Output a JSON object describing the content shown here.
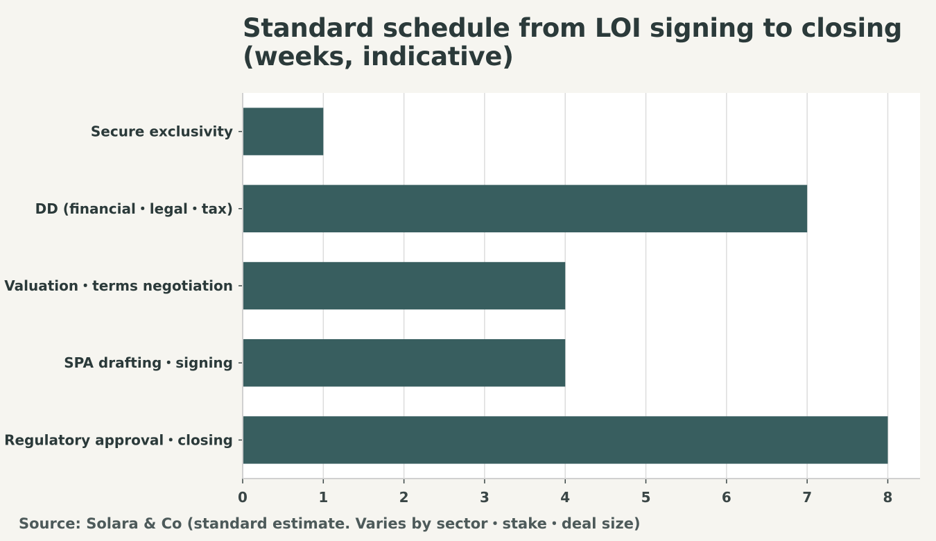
{
  "chart_data": {
    "type": "bar",
    "orientation": "horizontal",
    "title": "Standard schedule from LOI signing to closing (weeks, indicative)",
    "categories": [
      "Secure exclusivity",
      "DD (financial・legal・tax)",
      "Valuation・terms negotiation",
      "SPA drafting・signing",
      "Regulatory approval・closing"
    ],
    "values": [
      1,
      7,
      4,
      4,
      8
    ],
    "x_ticks": [
      0,
      1,
      2,
      3,
      4,
      5,
      6,
      7,
      8
    ],
    "xlim": [
      0,
      8.4
    ],
    "grid": "vertical",
    "bar_color": "#385e5f",
    "source": "Source: Solara & Co (standard estimate. Varies by sector・stake・deal size)"
  }
}
